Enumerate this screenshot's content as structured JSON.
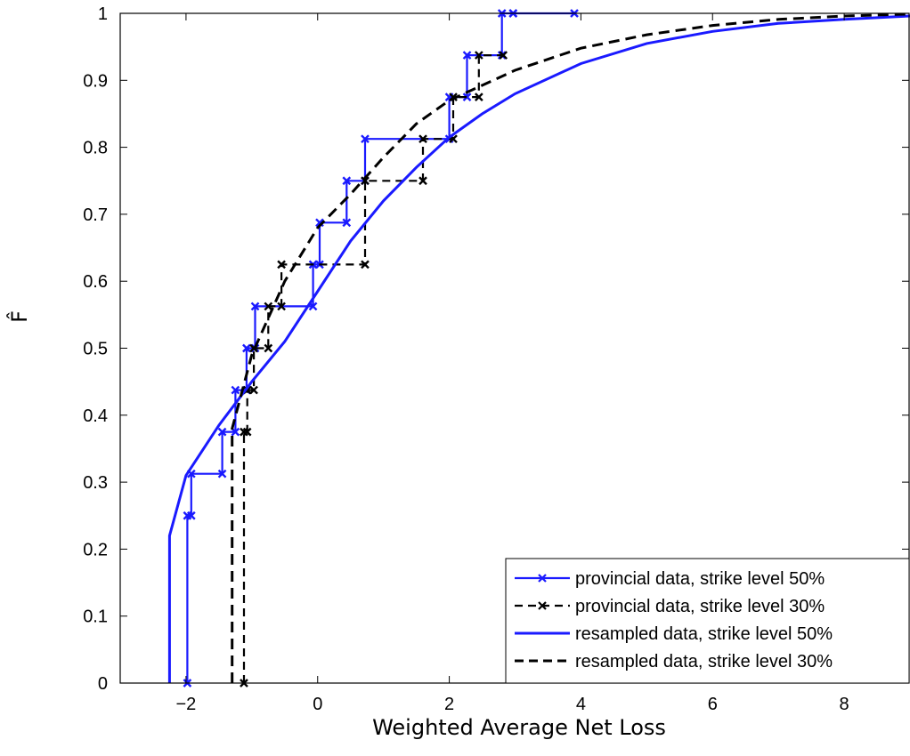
{
  "chart_data": {
    "type": "line",
    "xlabel": "Weighted Average Net Loss",
    "ylabel": "F̂",
    "xlim": [
      -3,
      9
    ],
    "ylim": [
      0,
      1
    ],
    "x_ticks": [
      -2,
      0,
      2,
      4,
      6,
      8
    ],
    "x_tick_labels": [
      "−2",
      "0",
      "2",
      "4",
      "6",
      "8"
    ],
    "y_ticks": [
      0,
      0.1,
      0.2,
      0.3,
      0.4,
      0.5,
      0.6,
      0.7,
      0.8,
      0.9,
      1
    ],
    "y_tick_labels": [
      "0",
      "0.1",
      "0.2",
      "0.3",
      "0.4",
      "0.5",
      "0.6",
      "0.7",
      "0.8",
      "0.9",
      "1"
    ],
    "grid": false,
    "legend_position": "bottom-right",
    "series": [
      {
        "name": "provincial data, strike level 50%",
        "style": "step-markers",
        "color": "#1a1aff",
        "dash": "solid",
        "x": [
          -1.98,
          -1.92,
          -1.45,
          -1.25,
          -1.08,
          -0.95,
          -0.07,
          0.03,
          0.44,
          0.72,
          2.0,
          2.27,
          2.8,
          2.97,
          3.9
        ],
        "y": [
          0,
          0.25,
          0.3125,
          0.375,
          0.4375,
          0.5,
          0.5625,
          0.625,
          0.6875,
          0.75,
          0.8125,
          0.875,
          0.9375,
          1.0,
          1.0
        ]
      },
      {
        "name": "provincial data, strike level 30%",
        "style": "step-markers",
        "color": "#000000",
        "dash": "dashed",
        "x": [
          -1.12,
          -1.07,
          -0.97,
          -0.75,
          -0.55,
          0.72,
          1.6,
          2.06,
          2.45,
          2.82
        ],
        "y": [
          0,
          0.375,
          0.4375,
          0.5,
          0.5625,
          0.625,
          0.75,
          0.8125,
          0.875,
          0.9375
        ]
      },
      {
        "name": "resampled data, strike level 50%",
        "style": "line",
        "color": "#1a1aff",
        "dash": "solid",
        "x": [
          -2.25,
          -2.25,
          -2.0,
          -1.5,
          -1.0,
          -0.5,
          0.0,
          0.5,
          1.0,
          1.5,
          2.0,
          2.5,
          3.0,
          4.0,
          5.0,
          6.0,
          7.0,
          8.0,
          9.0
        ],
        "y": [
          0,
          0.22,
          0.31,
          0.385,
          0.45,
          0.51,
          0.585,
          0.66,
          0.72,
          0.77,
          0.815,
          0.85,
          0.88,
          0.925,
          0.955,
          0.973,
          0.985,
          0.991,
          0.996
        ]
      },
      {
        "name": "resampled data, strike level 30%",
        "style": "line",
        "color": "#000000",
        "dash": "dashed",
        "x": [
          -1.3,
          -1.3,
          -1.0,
          -0.5,
          0.0,
          0.5,
          1.0,
          1.5,
          2.0,
          3.0,
          4.0,
          5.0,
          6.0,
          7.0,
          8.0,
          9.0
        ],
        "y": [
          0,
          0.38,
          0.49,
          0.6,
          0.68,
          0.73,
          0.785,
          0.835,
          0.87,
          0.915,
          0.948,
          0.968,
          0.982,
          0.991,
          0.996,
          0.999
        ]
      }
    ]
  }
}
